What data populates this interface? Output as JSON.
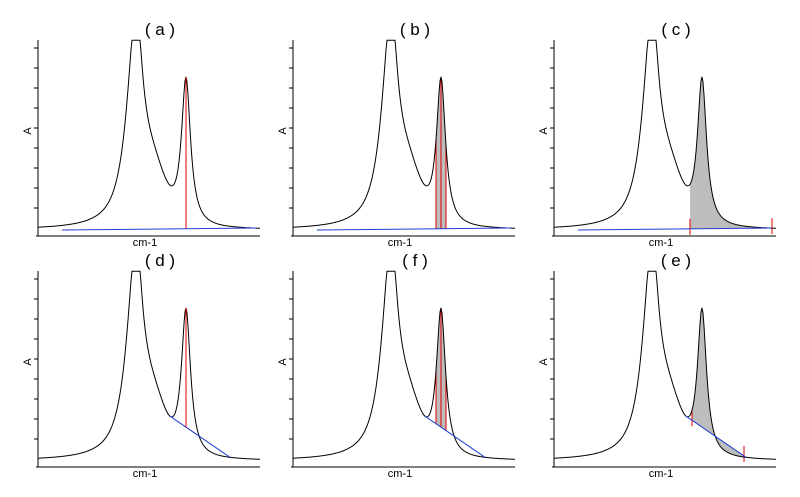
{
  "colors": {
    "curve": "#000000",
    "baseline": "#1f3fd1",
    "marker": "#e00000",
    "fill": "#bdbdbd",
    "axis": "#000000"
  },
  "chart_data": [
    {
      "type": "line",
      "title": "( a )",
      "xlabel": "cm-1",
      "ylabel": "A",
      "method": "height",
      "baseline": "flat",
      "grid": false
    },
    {
      "type": "line",
      "title": "( b )",
      "xlabel": "cm-1",
      "ylabel": "A",
      "method": "narrow-area",
      "baseline": "flat",
      "grid": false
    },
    {
      "type": "line",
      "title": "( c )",
      "xlabel": "cm-1",
      "ylabel": "A",
      "method": "wide-area",
      "baseline": "flat",
      "grid": false
    },
    {
      "type": "line",
      "title": "( d )",
      "xlabel": "cm-1",
      "ylabel": "A",
      "method": "height",
      "baseline": "sloped",
      "grid": false
    },
    {
      "type": "line",
      "title": "( f )",
      "xlabel": "cm-1",
      "ylabel": "A",
      "method": "narrow-area",
      "baseline": "sloped",
      "grid": false
    },
    {
      "type": "line",
      "title": "( e )",
      "xlabel": "cm-1",
      "ylabel": "A",
      "method": "wide-area",
      "baseline": "sloped",
      "grid": false
    }
  ]
}
